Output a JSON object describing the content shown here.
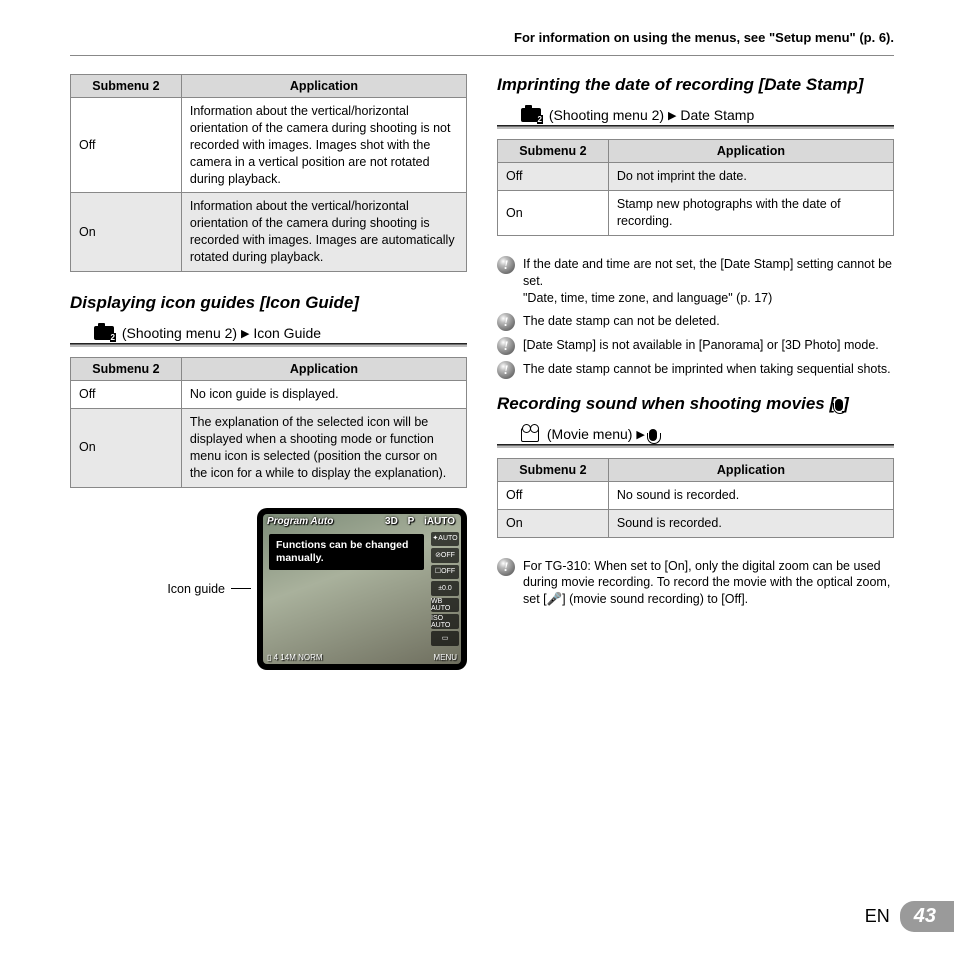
{
  "header": {
    "text": "For information on using the menus, see \"Setup menu\" (p. 6)."
  },
  "left": {
    "table1": {
      "headers": [
        "Submenu 2",
        "Application"
      ],
      "rows": [
        {
          "label": "Off",
          "app": "Information about the vertical/horizontal orientation of the camera during shooting is not recorded with images. Images shot with the camera in a vertical position are not rotated during playback.",
          "shaded": false
        },
        {
          "label": "On",
          "app": "Information about the vertical/horizontal orientation of the camera during shooting is recorded with images. Images are automatically rotated during playback.",
          "shaded": true
        }
      ]
    },
    "section1": {
      "title": "Displaying icon guides [Icon Guide]",
      "crumb_pre": "(Shooting menu 2)",
      "crumb_tail": "Icon Guide"
    },
    "table2": {
      "headers": [
        "Submenu 2",
        "Application"
      ],
      "rows": [
        {
          "label": "Off",
          "app": "No icon guide is displayed.",
          "shaded": false
        },
        {
          "label": "On",
          "app": "The explanation of the selected icon will be displayed when a shooting mode or function menu icon is selected (position the cursor on the icon for a while to display the explanation).",
          "shaded": true
        }
      ]
    },
    "figure": {
      "label": "Icon guide",
      "lcd": {
        "title": "Program Auto",
        "modes": [
          "3D",
          "P",
          "iAUTO"
        ],
        "right": [
          "✦AUTO",
          "⊘OFF",
          "☐OFF",
          "±0.0",
          "WB AUTO",
          "ISO AUTO",
          "▭"
        ],
        "bottom_left": "▯ 4 14M NORM",
        "bottom_right": "MENU",
        "tooltip": "Functions can be changed manually."
      }
    }
  },
  "right": {
    "section1": {
      "title": "Imprinting the date of recording [Date Stamp]",
      "crumb_pre": "(Shooting menu 2)",
      "crumb_tail": "Date Stamp"
    },
    "table1": {
      "headers": [
        "Submenu 2",
        "Application"
      ],
      "rows": [
        {
          "label": "Off",
          "app": "Do not imprint the date.",
          "shaded": true
        },
        {
          "label": "On",
          "app": "Stamp new photographs with the date of recording.",
          "shaded": false
        }
      ]
    },
    "notes1": [
      "If the date and time are not set, the [Date Stamp] setting cannot be set.\n\"Date, time, time zone, and language\" (p. 17)",
      "The date stamp can not be deleted.",
      "[Date Stamp] is not available in [Panorama] or [3D Photo] mode.",
      "The date stamp cannot be imprinted when taking sequential shots."
    ],
    "section2": {
      "title": "Recording sound when shooting movies [🎤]",
      "crumb_pre": "(Movie menu)"
    },
    "table2": {
      "headers": [
        "Submenu 2",
        "Application"
      ],
      "rows": [
        {
          "label": "Off",
          "app": "No sound is recorded.",
          "shaded": false
        },
        {
          "label": "On",
          "app": "Sound is recorded.",
          "shaded": true
        }
      ]
    },
    "notes2": [
      "For TG-310: When set to [On], only the digital zoom can be used during movie recording. To record the movie with the optical zoom, set [🎤] (movie sound recording) to [Off]."
    ]
  },
  "footer": {
    "lang": "EN",
    "page": "43"
  }
}
